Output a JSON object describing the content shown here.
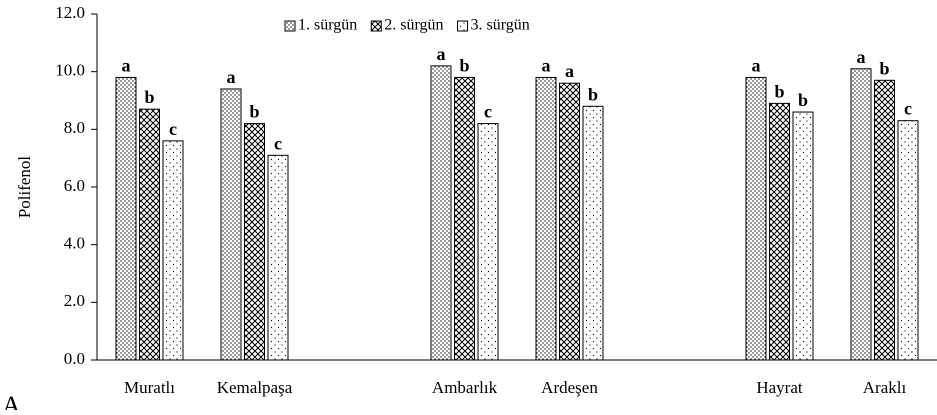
{
  "chart_data": {
    "type": "bar",
    "panel_label": "A",
    "y_label": "Polifenol",
    "categories": [
      "Muratlı",
      "Kemalpaşa",
      null,
      "Ambarlık",
      "Ardeşen",
      null,
      "Hayrat",
      "Araklı"
    ],
    "series": [
      {
        "name": "1. sürgün",
        "color": "#000000",
        "pattern": "dots",
        "values": [
          9.8,
          9.4,
          null,
          10.2,
          9.8,
          null,
          9.8,
          10.1
        ],
        "labels": [
          "a",
          "a",
          null,
          "a",
          "a",
          null,
          "a",
          "a"
        ]
      },
      {
        "name": "2. sürgün",
        "color": "#000000",
        "pattern": "crosshatch",
        "values": [
          8.7,
          8.2,
          null,
          9.8,
          9.6,
          null,
          8.9,
          9.7
        ],
        "labels": [
          "b",
          "b",
          null,
          "b",
          "a",
          null,
          "b",
          "b"
        ]
      },
      {
        "name": "3. sürgün",
        "color": "#000000",
        "pattern": "sparse-dots",
        "values": [
          7.6,
          7.1,
          null,
          8.2,
          8.8,
          null,
          8.6,
          8.3
        ],
        "labels": [
          "c",
          "c",
          null,
          "c",
          "b",
          null,
          "b",
          "c"
        ]
      }
    ],
    "ylim": [
      0,
      12
    ],
    "yticks": [
      {
        "value": 0,
        "label": "0.0"
      },
      {
        "value": 2,
        "label": "2.0"
      },
      {
        "value": 4,
        "label": "4.0"
      },
      {
        "value": 6,
        "label": "6.0"
      },
      {
        "value": 8,
        "label": "8.0"
      },
      {
        "value": 10,
        "label": "10.0"
      },
      {
        "value": 12,
        "label": "12.0"
      }
    ],
    "grid": false,
    "legend": "top"
  }
}
